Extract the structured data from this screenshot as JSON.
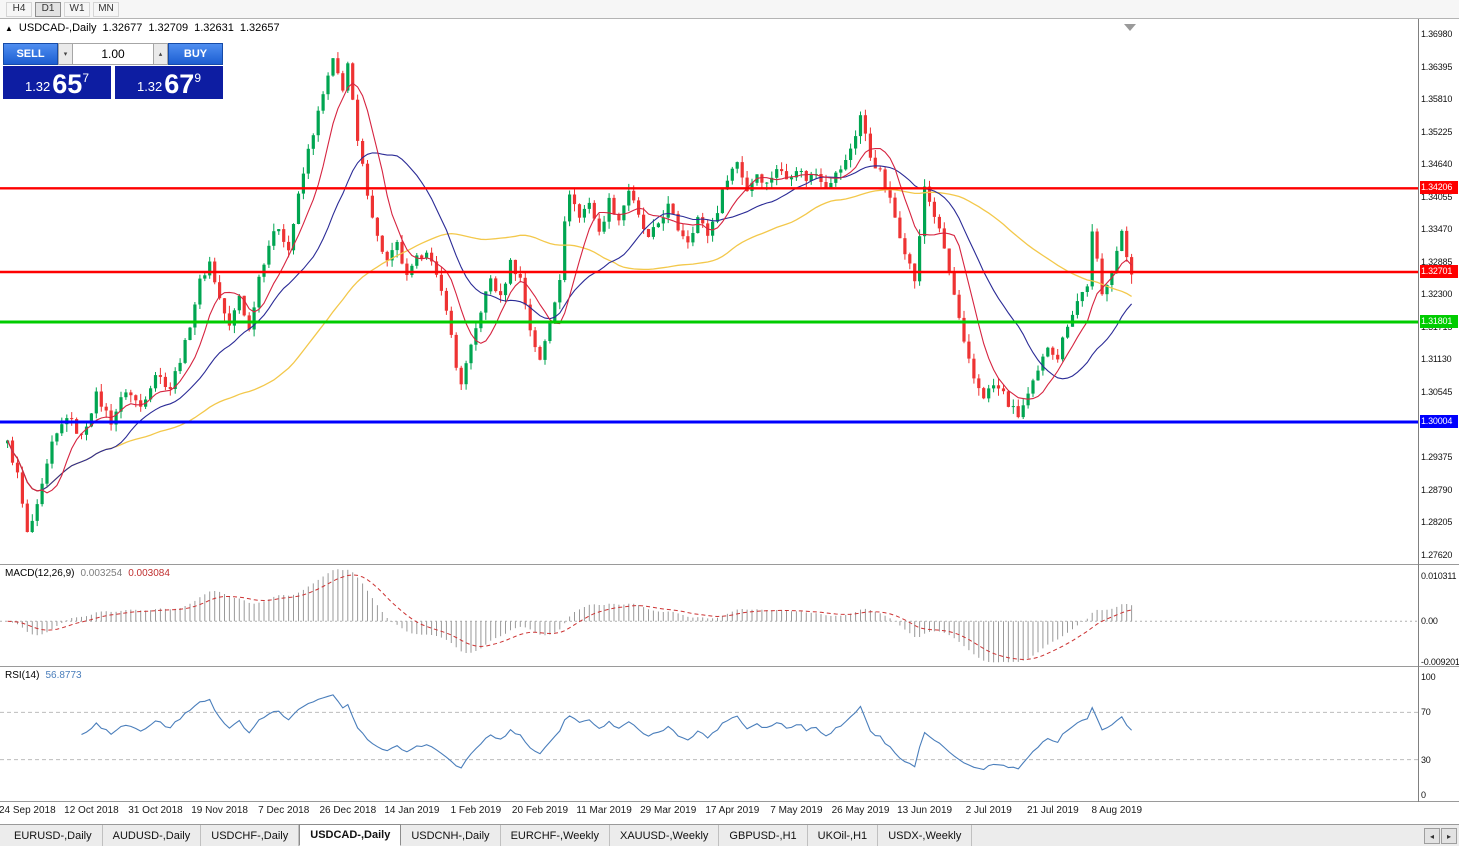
{
  "colors": {
    "accent_blue": "#1c5ed2",
    "accent_blue_l": "#4f8ef0",
    "quote_bg": "#0d1da2",
    "bull": "#00a551",
    "bear": "#ee3333",
    "ma_fast": "#d62440",
    "ma_mid": "#2b2b96",
    "ma_slow": "#f3c84b",
    "macd_hist": "#9a9a9a",
    "macd_signal": "#cc3333",
    "rsi_line": "#4a7ebb"
  },
  "icons": {
    "symbol_marker": "▲",
    "up_small": "▴",
    "down_small": "▾",
    "tab_left": "◂",
    "tab_right": "▸"
  },
  "toolbar": {
    "timeframes": [
      "H4",
      "D1",
      "W1",
      "MN"
    ],
    "active": "D1"
  },
  "trade": {
    "sell_label": "SELL",
    "buy_label": "BUY",
    "volume": "1.00",
    "sell_price": {
      "prefix": "1.32",
      "digits": "65",
      "sup": "7"
    },
    "buy_price": {
      "prefix": "1.32",
      "digits": "67",
      "sup": "9"
    }
  },
  "chart_data": {
    "type": "candlestick",
    "symbol": "USDCAD",
    "timeframe": "Daily",
    "title": {
      "symbol": "USDCAD-,Daily",
      "open": "1.32677",
      "high": "1.32709",
      "low": "1.32631",
      "close": "1.32657"
    },
    "axis": {
      "p_max": 1.3725,
      "p_min": 1.2745,
      "tick_top": 1.3698,
      "tick_step": 0.00585,
      "tick_count": 17,
      "decimals": 5
    },
    "hlines": [
      {
        "price": 1.34206,
        "label": "1.34206",
        "color": "#fe0000",
        "stroke": 2.4
      },
      {
        "price": 1.32701,
        "label": "1.32701",
        "color": "#fe0000",
        "stroke": 2.4
      },
      {
        "price": 1.31801,
        "label": "1.31801",
        "color": "#00cc00",
        "stroke": 3
      },
      {
        "price": 1.30004,
        "label": "1.30004",
        "color": "#0000fe",
        "stroke": 3
      }
    ],
    "dates": [
      "24 Sep 2018",
      "12 Oct 2018",
      "31 Oct 2018",
      "19 Nov 2018",
      "7 Dec 2018",
      "26 Dec 2018",
      "14 Jan 2019",
      "1 Feb 2019",
      "20 Feb 2019",
      "11 Mar 2019",
      "29 Mar 2019",
      "17 Apr 2019",
      "7 May 2019",
      "26 May 2019",
      "13 Jun 2019",
      "2 Jul 2019",
      "21 Jul 2019",
      "8 Aug 2019"
    ],
    "first_label_index": 4,
    "label_step": 13,
    "candle_count": 229,
    "moving_averages": [
      {
        "period": 55,
        "color": "ma_slow",
        "width": 1.3
      },
      {
        "period": 21,
        "color": "ma_mid",
        "width": 1.1
      },
      {
        "period": 8,
        "color": "ma_fast",
        "width": 1.1
      }
    ],
    "close_anchors": [
      [
        0,
        1.2962
      ],
      [
        2,
        1.2905
      ],
      [
        4,
        1.2798
      ],
      [
        6,
        1.2845
      ],
      [
        9,
        1.2958
      ],
      [
        12,
        1.3012
      ],
      [
        15,
        1.2972
      ],
      [
        18,
        1.3048
      ],
      [
        21,
        1.3002
      ],
      [
        24,
        1.3058
      ],
      [
        27,
        1.3028
      ],
      [
        30,
        1.3088
      ],
      [
        33,
        1.3062
      ],
      [
        36,
        1.314
      ],
      [
        39,
        1.3252
      ],
      [
        41,
        1.3288
      ],
      [
        43,
        1.3222
      ],
      [
        45,
        1.317
      ],
      [
        47,
        1.3228
      ],
      [
        49,
        1.3165
      ],
      [
        51,
        1.3262
      ],
      [
        53,
        1.332
      ],
      [
        55,
        1.3352
      ],
      [
        57,
        1.331
      ],
      [
        59,
        1.3405
      ],
      [
        61,
        1.3488
      ],
      [
        63,
        1.3555
      ],
      [
        65,
        1.362
      ],
      [
        66,
        1.3648
      ],
      [
        68,
        1.3602
      ],
      [
        69,
        1.3645
      ],
      [
        71,
        1.3502
      ],
      [
        73,
        1.3415
      ],
      [
        75,
        1.3332
      ],
      [
        77,
        1.3288
      ],
      [
        79,
        1.3318
      ],
      [
        81,
        1.3258
      ],
      [
        83,
        1.3292
      ],
      [
        85,
        1.3312
      ],
      [
        87,
        1.3258
      ],
      [
        89,
        1.3208
      ],
      [
        91,
        1.3098
      ],
      [
        92,
        1.3072
      ],
      [
        94,
        1.3132
      ],
      [
        96,
        1.3202
      ],
      [
        98,
        1.3258
      ],
      [
        100,
        1.3222
      ],
      [
        102,
        1.3288
      ],
      [
        104,
        1.3258
      ],
      [
        106,
        1.3168
      ],
      [
        108,
        1.3108
      ],
      [
        110,
        1.3182
      ],
      [
        112,
        1.3262
      ],
      [
        113,
        1.3355
      ],
      [
        114,
        1.3415
      ],
      [
        116,
        1.3368
      ],
      [
        118,
        1.3398
      ],
      [
        120,
        1.3338
      ],
      [
        122,
        1.3398
      ],
      [
        124,
        1.3365
      ],
      [
        126,
        1.3418
      ],
      [
        128,
        1.3368
      ],
      [
        130,
        1.3328
      ],
      [
        132,
        1.3358
      ],
      [
        134,
        1.3388
      ],
      [
        136,
        1.3348
      ],
      [
        138,
        1.3328
      ],
      [
        140,
        1.3368
      ],
      [
        142,
        1.3338
      ],
      [
        144,
        1.3382
      ],
      [
        146,
        1.3442
      ],
      [
        148,
        1.3468
      ],
      [
        150,
        1.3418
      ],
      [
        152,
        1.3448
      ],
      [
        154,
        1.3428
      ],
      [
        156,
        1.3458
      ],
      [
        158,
        1.3438
      ],
      [
        160,
        1.3458
      ],
      [
        162,
        1.3438
      ],
      [
        164,
        1.3448
      ],
      [
        166,
        1.3428
      ],
      [
        168,
        1.3445
      ],
      [
        170,
        1.3468
      ],
      [
        172,
        1.3518
      ],
      [
        173,
        1.3552
      ],
      [
        175,
        1.3478
      ],
      [
        177,
        1.3448
      ],
      [
        179,
        1.3398
      ],
      [
        181,
        1.3338
      ],
      [
        183,
        1.3282
      ],
      [
        184,
        1.3256
      ],
      [
        185,
        1.333
      ],
      [
        186,
        1.3424
      ],
      [
        188,
        1.3372
      ],
      [
        190,
        1.3312
      ],
      [
        192,
        1.3228
      ],
      [
        194,
        1.3138
      ],
      [
        196,
        1.3078
      ],
      [
        198,
        1.3048
      ],
      [
        200,
        1.3066
      ],
      [
        202,
        1.3052
      ],
      [
        203,
        1.3032
      ],
      [
        205,
        1.3012
      ],
      [
        207,
        1.3048
      ],
      [
        209,
        1.3088
      ],
      [
        211,
        1.3138
      ],
      [
        213,
        1.3118
      ],
      [
        215,
        1.3178
      ],
      [
        217,
        1.3218
      ],
      [
        219,
        1.3248
      ],
      [
        220,
        1.3338
      ],
      [
        221,
        1.3288
      ],
      [
        222,
        1.3228
      ],
      [
        224,
        1.3278
      ],
      [
        226,
        1.3338
      ],
      [
        227,
        1.3298
      ],
      [
        228,
        1.3266
      ]
    ]
  },
  "macd": {
    "name": "MACD(12,26,9)",
    "value_main": "0.003254",
    "value_signal": "0.003084",
    "axis": [
      {
        "label": "0.010311",
        "value": 0.010311
      },
      {
        "label": "0.00",
        "value": 0
      },
      {
        "label": "-0.009201",
        "value": -0.009201
      }
    ]
  },
  "rsi": {
    "name": "RSI(14)",
    "value": "56.8773",
    "levels": [
      100,
      70,
      30,
      0
    ],
    "dashed_levels": [
      70,
      30
    ]
  },
  "tabs": {
    "items": [
      "EURUSD-,Daily",
      "AUDUSD-,Daily",
      "USDCHF-,Daily",
      "USDCAD-,Daily",
      "USDCNH-,Daily",
      "EURCHF-,Weekly",
      "XAUUSD-,Weekly",
      "GBPUSD-,H1",
      "UKOil-,H1",
      "USDX-,Weekly"
    ],
    "active": "USDCAD-,Daily"
  }
}
